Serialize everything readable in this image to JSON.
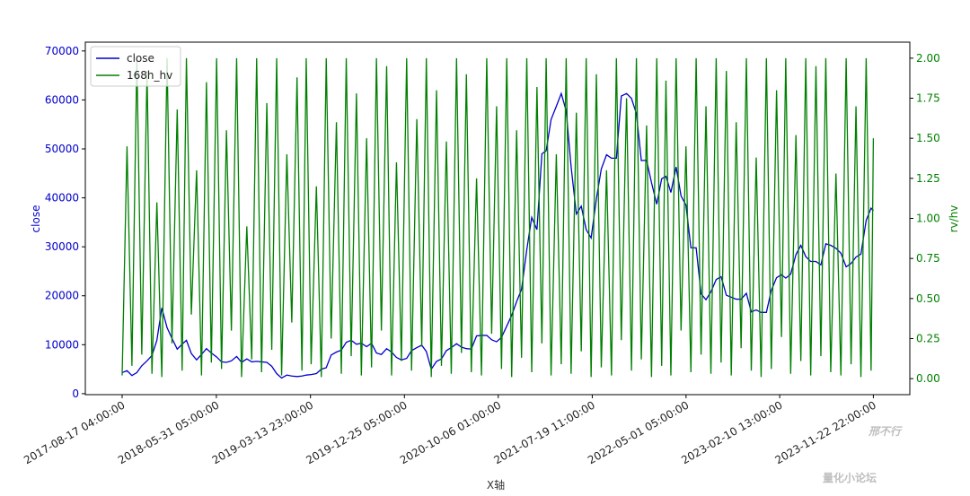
{
  "chart_data": {
    "type": "line",
    "x_label": "X轴",
    "y_label": "close",
    "y2_label": "rv/hv",
    "watermark": [
      "邢不行",
      "量化小论坛"
    ],
    "legend": "upper left",
    "x": [
      "2017-08-17 04:00:00",
      "2017-09-01 00:00:00",
      "2017-09-16 00:00:00",
      "2017-10-01 00:00:00",
      "2017-10-16 00:00:00",
      "2017-11-01 00:00:00",
      "2017-11-16 00:00:00",
      "2017-12-01 00:00:00",
      "2017-12-16 00:00:00",
      "2018-01-01 00:00:00",
      "2018-01-16 00:00:00",
      "2018-02-01 00:00:00",
      "2018-02-16 00:00:00",
      "2018-03-01 00:00:00",
      "2018-03-16 00:00:00",
      "2018-04-01 00:00:00",
      "2018-04-16 00:00:00",
      "2018-05-01 00:00:00",
      "2018-05-16 00:00:00",
      "2018-06-01 00:00:00",
      "2018-06-16 00:00:00",
      "2018-07-01 00:00:00",
      "2018-07-16 00:00:00",
      "2018-08-01 00:00:00",
      "2018-08-16 00:00:00",
      "2018-09-01 00:00:00",
      "2018-09-16 00:00:00",
      "2018-10-01 00:00:00",
      "2018-10-16 00:00:00",
      "2018-11-01 00:00:00",
      "2018-11-16 00:00:00",
      "2018-12-01 00:00:00",
      "2018-12-16 00:00:00",
      "2019-01-01 00:00:00",
      "2019-01-16 00:00:00",
      "2019-02-01 00:00:00",
      "2019-02-16 00:00:00",
      "2019-03-01 00:00:00",
      "2019-03-16 00:00:00",
      "2019-04-01 00:00:00",
      "2019-04-16 00:00:00",
      "2019-05-01 00:00:00",
      "2019-05-16 00:00:00",
      "2019-06-01 00:00:00",
      "2019-06-16 00:00:00",
      "2019-07-01 00:00:00",
      "2019-07-16 00:00:00",
      "2019-08-01 00:00:00",
      "2019-08-16 00:00:00",
      "2019-09-01 00:00:00",
      "2019-09-16 00:00:00",
      "2019-10-01 00:00:00",
      "2019-10-16 00:00:00",
      "2019-11-01 00:00:00",
      "2019-11-16 00:00:00",
      "2019-12-01 00:00:00",
      "2019-12-16 00:00:00",
      "2020-01-01 00:00:00",
      "2020-01-16 00:00:00",
      "2020-02-01 00:00:00",
      "2020-02-16 00:00:00",
      "2020-03-01 00:00:00",
      "2020-03-16 00:00:00",
      "2020-04-01 00:00:00",
      "2020-04-16 00:00:00",
      "2020-05-01 00:00:00",
      "2020-05-16 00:00:00",
      "2020-06-01 00:00:00",
      "2020-06-16 00:00:00",
      "2020-07-01 00:00:00",
      "2020-07-16 00:00:00",
      "2020-08-01 00:00:00",
      "2020-08-16 00:00:00",
      "2020-09-01 00:00:00",
      "2020-09-16 00:00:00",
      "2020-10-01 00:00:00",
      "2020-10-16 00:00:00",
      "2020-11-01 00:00:00",
      "2020-11-16 00:00:00",
      "2020-12-01 00:00:00",
      "2020-12-16 00:00:00",
      "2021-01-01 00:00:00",
      "2021-01-16 00:00:00",
      "2021-02-01 00:00:00",
      "2021-02-16 00:00:00",
      "2021-03-01 00:00:00",
      "2021-03-16 00:00:00",
      "2021-04-01 00:00:00",
      "2021-04-16 00:00:00",
      "2021-05-01 00:00:00",
      "2021-05-16 00:00:00",
      "2021-06-01 00:00:00",
      "2021-06-16 00:00:00",
      "2021-07-01 00:00:00",
      "2021-07-16 00:00:00",
      "2021-08-01 00:00:00",
      "2021-08-16 00:00:00",
      "2021-09-01 00:00:00",
      "2021-09-16 00:00:00",
      "2021-10-01 00:00:00",
      "2021-10-16 00:00:00",
      "2021-11-01 00:00:00",
      "2021-11-16 00:00:00",
      "2021-12-01 00:00:00",
      "2021-12-16 00:00:00",
      "2022-01-01 00:00:00",
      "2022-01-16 00:00:00",
      "2022-02-01 00:00:00",
      "2022-02-16 00:00:00",
      "2022-03-01 00:00:00",
      "2022-03-16 00:00:00",
      "2022-04-01 00:00:00",
      "2022-04-16 00:00:00",
      "2022-05-01 00:00:00",
      "2022-05-16 00:00:00",
      "2022-06-01 00:00:00",
      "2022-06-16 00:00:00",
      "2022-07-01 00:00:00",
      "2022-07-16 00:00:00",
      "2022-08-01 00:00:00",
      "2022-08-16 00:00:00",
      "2022-09-01 00:00:00",
      "2022-09-16 00:00:00",
      "2022-10-01 00:00:00",
      "2022-10-16 00:00:00",
      "2022-11-01 00:00:00",
      "2022-11-16 00:00:00",
      "2022-12-01 00:00:00",
      "2022-12-16 00:00:00",
      "2023-01-01 00:00:00",
      "2023-01-16 00:00:00",
      "2023-02-01 00:00:00",
      "2023-02-16 00:00:00",
      "2023-03-01 00:00:00",
      "2023-03-16 00:00:00",
      "2023-04-01 00:00:00",
      "2023-04-16 00:00:00",
      "2023-05-01 00:00:00",
      "2023-05-16 00:00:00",
      "2023-06-01 00:00:00",
      "2023-06-16 00:00:00",
      "2023-07-01 00:00:00",
      "2023-07-16 00:00:00",
      "2023-08-01 00:00:00",
      "2023-08-16 00:00:00",
      "2023-09-01 00:00:00",
      "2023-09-16 00:00:00",
      "2023-10-01 00:00:00",
      "2023-10-16 00:00:00",
      "2023-11-01 00:00:00",
      "2023-11-16 00:00:00",
      "2023-11-22 22:00:00"
    ],
    "series": [
      {
        "name": "close",
        "color": "#0000cc",
        "axis": "y",
        "values": [
          4300,
          4700,
          3700,
          4300,
          5700,
          6700,
          7800,
          10900,
          17500,
          13500,
          11300,
          9100,
          10100,
          10900,
          8200,
          6900,
          8000,
          9200,
          8300,
          7500,
          6500,
          6400,
          6700,
          7600,
          6400,
          7100,
          6500,
          6600,
          6500,
          6400,
          5600,
          4100,
          3200,
          3800,
          3600,
          3500,
          3600,
          3800,
          3900,
          4100,
          5000,
          5300,
          7900,
          8500,
          8900,
          10500,
          10900,
          10100,
          10300,
          9600,
          10300,
          8300,
          8000,
          9200,
          8500,
          7400,
          6900,
          7200,
          8800,
          9400,
          9900,
          8600,
          5000,
          6600,
          7100,
          8800,
          9400,
          10200,
          9500,
          9200,
          9100,
          11800,
          11900,
          11900,
          11000,
          10600,
          11500,
          13800,
          16000,
          18800,
          21300,
          29400,
          36000,
          33500,
          49000,
          49600,
          56000,
          58700,
          61300,
          57800,
          46400,
          36700,
          38300,
          33500,
          31800,
          39800,
          45900,
          48800,
          48100,
          48100,
          60800,
          61300,
          60300,
          57200,
          47600,
          47700,
          43100,
          38700,
          43900,
          44400,
          41100,
          46300,
          40400,
          38500,
          29800,
          29800,
          20400,
          19200,
          20800,
          23300,
          23900,
          20100,
          19700,
          19300,
          19300,
          20500,
          16700,
          17100,
          16600,
          16600,
          21100,
          23700,
          24300,
          23600,
          24400,
          28400,
          30300,
          28000,
          27000,
          27000,
          26300,
          30600,
          30300,
          29700,
          28700,
          25900,
          26600,
          27900,
          28500,
          35400,
          37900,
          37400
        ]
      },
      {
        "name": "168h_hv",
        "color": "#008000",
        "axis": "y2",
        "values": [
          0.02,
          1.45,
          0.08,
          2.0,
          0.15,
          1.92,
          0.03,
          1.1,
          0.01,
          2.0,
          0.22,
          1.68,
          0.05,
          2.0,
          0.4,
          1.3,
          0.02,
          1.85,
          0.1,
          2.0,
          0.06,
          1.55,
          0.3,
          2.0,
          0.01,
          0.95,
          0.12,
          2.0,
          0.04,
          1.72,
          0.18,
          2.0,
          0.02,
          1.4,
          0.35,
          1.88,
          0.05,
          2.0,
          0.09,
          1.2,
          0.01,
          2.0,
          0.25,
          1.6,
          0.03,
          2.0,
          0.14,
          1.78,
          0.02,
          1.5,
          0.07,
          2.0,
          0.3,
          1.95,
          0.02,
          1.35,
          0.11,
          2.0,
          0.05,
          1.62,
          0.2,
          2.0,
          0.01,
          1.8,
          0.08,
          1.48,
          0.03,
          2.0,
          0.16,
          1.9,
          0.04,
          1.25,
          0.02,
          2.0,
          0.28,
          1.7,
          0.06,
          2.0,
          0.01,
          1.55,
          0.13,
          2.0,
          0.04,
          1.82,
          0.22,
          2.0,
          0.02,
          1.4,
          0.09,
          2.0,
          0.03,
          1.66,
          0.17,
          2.0,
          0.01,
          1.9,
          0.07,
          1.3,
          0.02,
          2.0,
          0.24,
          1.75,
          0.05,
          2.0,
          0.12,
          1.58,
          0.01,
          2.0,
          0.08,
          1.86,
          0.02,
          2.0,
          0.3,
          1.45,
          0.04,
          2.0,
          0.15,
          1.7,
          0.03,
          2.0,
          0.1,
          1.92,
          0.02,
          1.6,
          0.19,
          2.0,
          0.05,
          1.38,
          0.01,
          2.0,
          0.06,
          1.8,
          0.26,
          2.0,
          0.03,
          1.52,
          0.11,
          2.0,
          0.02,
          1.95,
          0.14,
          2.0,
          0.04,
          1.28,
          0.02,
          2.0,
          0.09,
          1.7,
          0.01,
          2.0,
          0.05,
          1.5
        ]
      }
    ],
    "xlim": [
      "2017-04-27 00:00:00",
      "2024-03-13 00:00:00"
    ],
    "xticks": [
      "2017-08-17 04:00:00",
      "2018-05-31 05:00:00",
      "2019-03-13 23:00:00",
      "2019-12-25 05:00:00",
      "2020-10-06 01:00:00",
      "2021-07-19 11:00:00",
      "2022-05-01 05:00:00",
      "2023-02-10 13:00:00",
      "2023-11-22 22:00:00"
    ],
    "ylim": [
      -200,
      71800
    ],
    "yticks": [
      0,
      10000,
      20000,
      30000,
      40000,
      50000,
      60000,
      70000
    ],
    "y2lim": [
      -0.1,
      2.1
    ],
    "y2ticks": [
      {
        "value": 0,
        "label": "0.00"
      },
      {
        "value": 0.25,
        "label": "0.25"
      },
      {
        "value": 0.5,
        "label": "0.50"
      },
      {
        "value": 0.75,
        "label": "0.75"
      },
      {
        "value": 1,
        "label": "1.00"
      },
      {
        "value": 1.25,
        "label": "1.25"
      },
      {
        "value": 1.5,
        "label": "1.50"
      },
      {
        "value": 1.75,
        "label": "1.75"
      },
      {
        "value": 2,
        "label": "2.00"
      }
    ]
  }
}
